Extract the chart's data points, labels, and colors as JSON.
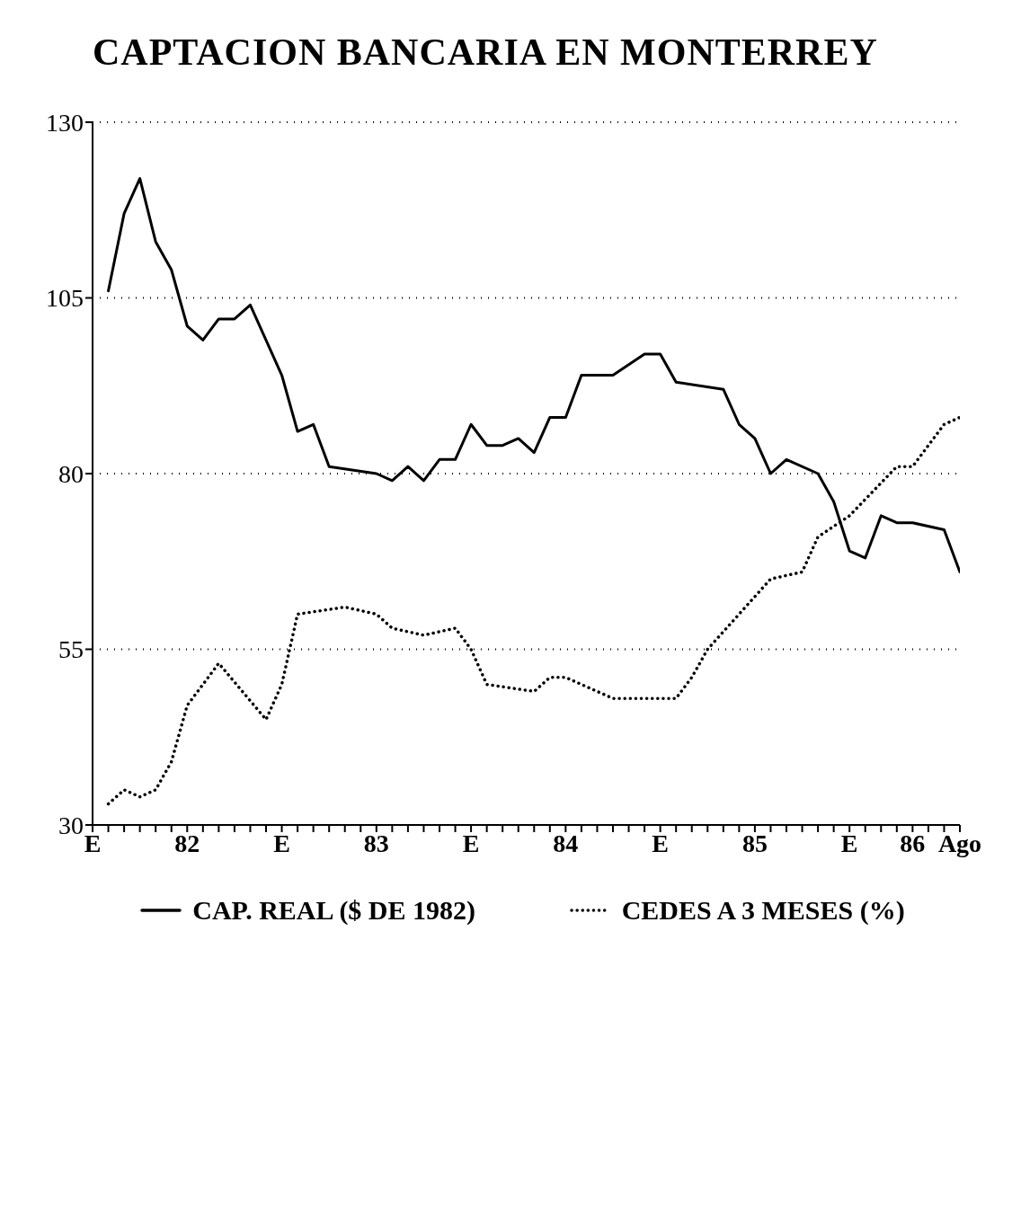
{
  "chart_data": {
    "type": "line",
    "title": "CAPTACION BANCARIA EN MONTERREY",
    "xlim": [
      "1982-01",
      "1986-08"
    ],
    "xticks": [
      {
        "value": "1982-01",
        "label": "E"
      },
      {
        "value": "1982-02",
        "label": null
      },
      {
        "value": "1982-03",
        "label": null
      },
      {
        "value": "1982-04",
        "label": null
      },
      {
        "value": "1982-05",
        "label": null
      },
      {
        "value": "1982-06",
        "label": null
      },
      {
        "value": "1982-07",
        "label": "82"
      },
      {
        "value": "1982-08",
        "label": null
      },
      {
        "value": "1982-09",
        "label": null
      },
      {
        "value": "1982-10",
        "label": null
      },
      {
        "value": "1982-11",
        "label": null
      },
      {
        "value": "1982-12",
        "label": null
      },
      {
        "value": "1983-01",
        "label": "E"
      },
      {
        "value": "1983-02",
        "label": null
      },
      {
        "value": "1983-03",
        "label": null
      },
      {
        "value": "1983-04",
        "label": null
      },
      {
        "value": "1983-05",
        "label": null
      },
      {
        "value": "1983-06",
        "label": null
      },
      {
        "value": "1983-07",
        "label": "83"
      },
      {
        "value": "1983-08",
        "label": null
      },
      {
        "value": "1983-09",
        "label": null
      },
      {
        "value": "1983-10",
        "label": null
      },
      {
        "value": "1983-11",
        "label": null
      },
      {
        "value": "1983-12",
        "label": null
      },
      {
        "value": "1984-01",
        "label": "E"
      },
      {
        "value": "1984-02",
        "label": null
      },
      {
        "value": "1984-03",
        "label": null
      },
      {
        "value": "1984-04",
        "label": null
      },
      {
        "value": "1984-05",
        "label": null
      },
      {
        "value": "1984-06",
        "label": null
      },
      {
        "value": "1984-07",
        "label": "84"
      },
      {
        "value": "1984-08",
        "label": null
      },
      {
        "value": "1984-09",
        "label": null
      },
      {
        "value": "1984-10",
        "label": null
      },
      {
        "value": "1984-11",
        "label": null
      },
      {
        "value": "1984-12",
        "label": null
      },
      {
        "value": "1985-01",
        "label": "E"
      },
      {
        "value": "1985-02",
        "label": null
      },
      {
        "value": "1985-03",
        "label": null
      },
      {
        "value": "1985-04",
        "label": null
      },
      {
        "value": "1985-05",
        "label": null
      },
      {
        "value": "1985-06",
        "label": null
      },
      {
        "value": "1985-07",
        "label": "85"
      },
      {
        "value": "1985-08",
        "label": null
      },
      {
        "value": "1985-09",
        "label": null
      },
      {
        "value": "1985-10",
        "label": null
      },
      {
        "value": "1985-11",
        "label": null
      },
      {
        "value": "1985-12",
        "label": null
      },
      {
        "value": "1986-01",
        "label": "E"
      },
      {
        "value": "1986-02",
        "label": null
      },
      {
        "value": "1986-03",
        "label": null
      },
      {
        "value": "1986-04",
        "label": null
      },
      {
        "value": "1986-05",
        "label": "86"
      },
      {
        "value": "1986-06",
        "label": null
      },
      {
        "value": "1986-07",
        "label": null
      },
      {
        "value": "1986-08",
        "label": "Ago"
      }
    ],
    "ylim": [
      30,
      130
    ],
    "yticks": [
      30,
      55,
      80,
      105,
      130
    ],
    "grid": "y",
    "legend": "bottom",
    "marker": "none",
    "series": [
      {
        "name": "CAP. REAL ($ DE 1982)",
        "color": "#000000",
        "line_style": "solid",
        "x": [
          "1982-02",
          "1982-03",
          "1982-04",
          "1982-05",
          "1982-06",
          "1982-07",
          "1982-08",
          "1982-09",
          "1982-10",
          "1982-11",
          "1983-01",
          "1983-02",
          "1983-03",
          "1983-04",
          "1983-07",
          "1983-08",
          "1983-09",
          "1983-10",
          "1983-11",
          "1983-12",
          "1984-01",
          "1984-02",
          "1984-03",
          "1984-04",
          "1984-05",
          "1984-06",
          "1984-07",
          "1984-08",
          "1984-10",
          "1984-12",
          "1985-01",
          "1985-02",
          "1985-05",
          "1985-06",
          "1985-07",
          "1985-08",
          "1985-09",
          "1985-11",
          "1985-12",
          "1986-01",
          "1986-02",
          "1986-03",
          "1986-04",
          "1986-05",
          "1986-07",
          "1986-08"
        ],
        "values": [
          106,
          117,
          122,
          113,
          109,
          101,
          99,
          102,
          102,
          104,
          94,
          86,
          87,
          81,
          80,
          79,
          81,
          79,
          82,
          82,
          87,
          84,
          84,
          85,
          83,
          88,
          88,
          94,
          94,
          97,
          97,
          93,
          92,
          87,
          85,
          80,
          82,
          80,
          76,
          69,
          68,
          74,
          73,
          73,
          72,
          66
        ]
      },
      {
        "name": "CEDES A 3 MESES (%)",
        "color": "#000000",
        "line_style": "dotted",
        "x": [
          "1982-02",
          "1982-03",
          "1982-04",
          "1982-05",
          "1982-06",
          "1982-07",
          "1982-09",
          "1982-12",
          "1983-01",
          "1983-02",
          "1983-05",
          "1983-07",
          "1983-08",
          "1983-10",
          "1983-12",
          "1984-01",
          "1984-02",
          "1984-05",
          "1984-06",
          "1984-07",
          "1984-10",
          "1985-02",
          "1985-03",
          "1985-04",
          "1985-06",
          "1985-08",
          "1985-10",
          "1985-11",
          "1986-01",
          "1986-04",
          "1986-05",
          "1986-07",
          "1986-08"
        ],
        "values": [
          33,
          35,
          34,
          35,
          39,
          47,
          53,
          45,
          50,
          60,
          61,
          60,
          58,
          57,
          58,
          55,
          50,
          49,
          51,
          51,
          48,
          48,
          51,
          55,
          60,
          65,
          66,
          71,
          74,
          81,
          81,
          87,
          88
        ]
      }
    ]
  }
}
